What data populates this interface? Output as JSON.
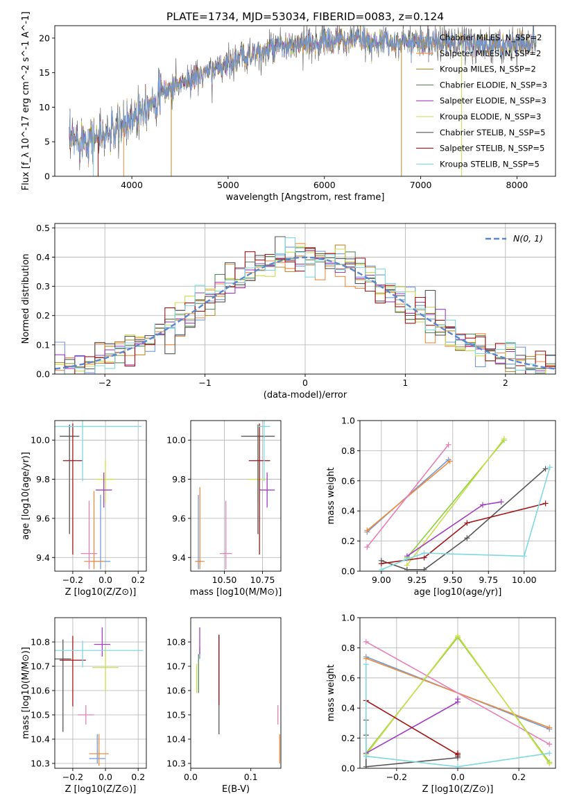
{
  "figure": {
    "title": "PLATE=1734, MJD=53034, FIBERID=0083, z=0.124"
  },
  "colors": [
    "#6f9bd9",
    "#ef8a3d",
    "#b88a2d",
    "#5a8a5a",
    "#a23cc2",
    "#ccdc4c",
    "#555555",
    "#a31313",
    "#7fd7e0",
    "#e77fb5",
    "#8ad23a",
    "#7b3fbf"
  ],
  "chart_data": [
    {
      "id": "spectrum",
      "type": "line",
      "xlabel": "wavelength [Angstrom, rest frame]",
      "ylabel": "Flux [f_λ 10^-17 erg cm^-2 s^-1 A^-1]",
      "xlim": [
        3200,
        8400
      ],
      "ylim": [
        0,
        21.8
      ],
      "xticks": [
        4000,
        5000,
        6000,
        7000,
        8000
      ],
      "yticks": [
        0,
        5,
        10,
        15,
        20
      ],
      "legend_position": "right",
      "continuum": {
        "x": [
          3350,
          3500,
          3700,
          3900,
          4100,
          4300,
          4500,
          4800,
          5000,
          5200,
          5500,
          5800,
          6000,
          6300,
          6600,
          7000,
          7400,
          7800,
          8200
        ],
        "y": [
          5.0,
          5.5,
          5.8,
          7.0,
          10.0,
          12.0,
          13.5,
          15.0,
          16.5,
          17.5,
          18.5,
          19.0,
          19.5,
          19.8,
          19.5,
          19.5,
          19.2,
          19.0,
          19.5
        ]
      },
      "series": [
        {
          "name": "Chabrier MILES, N_SSP=2"
        },
        {
          "name": "Salpeter MILES, N_SSP=2"
        },
        {
          "name": "Kroupa MILES, N_SSP=2"
        },
        {
          "name": "Chabrier ELODIE, N_SSP=3"
        },
        {
          "name": "Salpeter ELODIE, N_SSP=3"
        },
        {
          "name": "Kroupa ELODIE, N_SSP=3"
        },
        {
          "name": "Chabrier STELIB, N_SSP=5"
        },
        {
          "name": "Salpeter STELIB, N_SSP=5"
        },
        {
          "name": "Kroupa STELIB, N_SSP=5"
        }
      ]
    },
    {
      "id": "residuals",
      "type": "histogram",
      "xlabel": "(data-model)/error",
      "ylabel": "Normed distribution",
      "xlim": [
        -2.5,
        2.5
      ],
      "ylim": [
        0,
        0.515
      ],
      "xticks": [
        -2,
        -1,
        0,
        1,
        2
      ],
      "yticks": [
        0.0,
        0.1,
        0.2,
        0.3,
        0.4,
        0.5
      ],
      "grid": true,
      "legend_position": "upper right",
      "legend_label": "N(0, 1)",
      "bin_width": 0.1
    },
    {
      "id": "age_vs_Z",
      "type": "errorbar",
      "xlabel": "Z [log10(Z/Z⊙)]",
      "ylabel": "age [log10(age/yr)]",
      "xlim": [
        -0.31,
        0.25
      ],
      "ylim": [
        9.33,
        10.1
      ],
      "xticks": [
        -0.2,
        0.0,
        0.2
      ],
      "yticks": [
        9.4,
        9.6,
        9.8,
        10.0
      ],
      "grid": true,
      "points": [
        {
          "x": -0.03,
          "y": 9.38,
          "xerr": 0.06,
          "yerr": [
            0.04,
            0.34
          ],
          "c": 0
        },
        {
          "x": -0.07,
          "y": 9.38,
          "xerr": 0.06,
          "yerr": [
            0.04,
            0.36
          ],
          "c": 1
        },
        {
          "x": 0.0,
          "y": 9.8,
          "xerr": 0.06,
          "yerr": [
            0.12,
            0.1
          ],
          "c": 5
        },
        {
          "x": -0.01,
          "y": 9.745,
          "xerr": 0.05,
          "yerr": [
            0.09,
            0.09
          ],
          "c": 4
        },
        {
          "x": -0.22,
          "y": 10.02,
          "xerr": 0.06,
          "yerr": [
            0.5,
            0.06
          ],
          "c": 6
        },
        {
          "x": -0.2,
          "y": 9.895,
          "xerr": 0.06,
          "yerr": [
            0.48,
            0.19
          ],
          "c": 7
        },
        {
          "x": -0.14,
          "y": 10.07,
          "xerr": 0.36,
          "yerr": [
            0.28,
            0.04
          ],
          "c": 8
        },
        {
          "x": -0.1,
          "y": 9.42,
          "xerr": 0.05,
          "yerr": [
            0.08,
            0.27
          ],
          "c": 9
        }
      ]
    },
    {
      "id": "age_vs_mass",
      "type": "errorbar",
      "xlabel": "mass [log10(M/M⊙)]",
      "ylabel": "",
      "xlim": [
        10.28,
        10.87
      ],
      "ylim": [
        9.33,
        10.1
      ],
      "xticks": [
        10.5,
        10.75
      ],
      "yticks": [
        9.4,
        9.6,
        9.8,
        10.0
      ],
      "grid": true,
      "points": [
        {
          "x": 10.33,
          "y": 9.38,
          "xerr": 0.02,
          "yerr": [
            0.04,
            0.34
          ],
          "c": 0
        },
        {
          "x": 10.34,
          "y": 9.38,
          "xerr": 0.03,
          "yerr": [
            0.04,
            0.38
          ],
          "c": 1
        },
        {
          "x": 10.72,
          "y": 9.8,
          "xerr": 0.06,
          "yerr": [
            0.12,
            0.1
          ],
          "c": 5
        },
        {
          "x": 10.78,
          "y": 9.745,
          "xerr": 0.05,
          "yerr": [
            0.09,
            0.09
          ],
          "c": 4
        },
        {
          "x": 10.72,
          "y": 10.02,
          "xerr": 0.11,
          "yerr": [
            0.5,
            0.06
          ],
          "c": 6
        },
        {
          "x": 10.73,
          "y": 9.895,
          "xerr": 0.07,
          "yerr": [
            0.48,
            0.19
          ],
          "c": 7
        },
        {
          "x": 10.76,
          "y": 10.07,
          "xerr": 0.04,
          "yerr": [
            0.28,
            0.04
          ],
          "c": 8
        },
        {
          "x": 10.51,
          "y": 9.42,
          "xerr": 0.04,
          "yerr": [
            0.08,
            0.27
          ],
          "c": 9
        }
      ]
    },
    {
      "id": "mass_weight_vs_age",
      "type": "line",
      "xlabel": "age [log10(age/yr)]",
      "ylabel": "mass weight",
      "xlim": [
        8.85,
        10.22
      ],
      "ylim": [
        0,
        1.0
      ],
      "xticks": [
        9.0,
        9.25,
        9.5,
        9.75,
        10.0
      ],
      "yticks": [
        0.0,
        0.2,
        0.4,
        0.6,
        0.8,
        1.0
      ],
      "grid": true,
      "series": [
        {
          "x": [
            8.9,
            9.47
          ],
          "y": [
            0.26,
            0.74
          ],
          "c": 0
        },
        {
          "x": [
            8.9,
            9.48
          ],
          "y": [
            0.27,
            0.73
          ],
          "c": 1
        },
        {
          "x": [
            8.9,
            9.47
          ],
          "y": [
            0.16,
            0.84
          ],
          "c": 9
        },
        {
          "x": [
            9.18,
            9.86
          ],
          "y": [
            0.09,
            0.87
          ],
          "c": 10
        },
        {
          "x": [
            9.18,
            9.86
          ],
          "y": [
            0.04,
            0.88
          ],
          "c": 5
        },
        {
          "x": [
            9.18,
            9.71,
            9.84
          ],
          "y": [
            0.1,
            0.44,
            0.46
          ],
          "c": 4
        },
        {
          "x": [
            9.0,
            9.18,
            9.3,
            9.6,
            10.15
          ],
          "y": [
            0.07,
            0.01,
            0.01,
            0.22,
            0.68
          ],
          "c": 6
        },
        {
          "x": [
            9.0,
            9.3,
            9.6,
            10.15
          ],
          "y": [
            0.05,
            0.09,
            0.32,
            0.45
          ],
          "c": 7
        },
        {
          "x": [
            9.0,
            9.18,
            9.3,
            10.0,
            10.18
          ],
          "y": [
            0.01,
            0.08,
            0.12,
            0.1,
            0.69
          ],
          "c": 8
        }
      ]
    },
    {
      "id": "mass_vs_Z",
      "type": "errorbar",
      "xlabel": "Z [log10(Z/Z⊙)]",
      "ylabel": "mass [log10(M/M⊙)]",
      "xlim": [
        -0.31,
        0.25
      ],
      "ylim": [
        10.28,
        10.9
      ],
      "xticks": [
        -0.2,
        0.0,
        0.2
      ],
      "yticks": [
        10.3,
        10.4,
        10.5,
        10.6,
        10.7,
        10.8
      ],
      "grid": true,
      "points": [
        {
          "x": -0.05,
          "y": 10.32,
          "xerr": 0.05,
          "yerr": [
            0.02,
            0.1
          ],
          "c": 0
        },
        {
          "x": -0.04,
          "y": 10.34,
          "xerr": 0.06,
          "yerr": [
            0.05,
            0.08
          ],
          "c": 1
        },
        {
          "x": 0.0,
          "y": 10.695,
          "xerr": 0.08,
          "yerr": [
            0.1,
            0.08
          ],
          "c": 5
        },
        {
          "x": -0.02,
          "y": 10.79,
          "xerr": 0.05,
          "yerr": [
            0.05,
            0.07
          ],
          "c": 4
        },
        {
          "x": -0.26,
          "y": 10.73,
          "xerr": 0.05,
          "yerr": [
            0.3,
            0.08
          ],
          "c": 6
        },
        {
          "x": -0.2,
          "y": 10.725,
          "xerr": 0.08,
          "yerr": [
            0.19,
            0.1
          ],
          "c": 7
        },
        {
          "x": -0.14,
          "y": 10.765,
          "xerr": 0.37,
          "yerr": [
            0.07,
            0.04
          ],
          "c": 8
        },
        {
          "x": -0.12,
          "y": 10.5,
          "xerr": 0.05,
          "yerr": [
            0.04,
            0.04
          ],
          "c": 9
        }
      ]
    },
    {
      "id": "mass_vs_EBV",
      "type": "errorbar",
      "xlabel": "E(B-V)",
      "ylabel": "",
      "xlim": [
        0,
        0.15
      ],
      "ylim": [
        10.28,
        10.9
      ],
      "xticks": [
        0.0,
        0.1
      ],
      "yticks": [
        10.3,
        10.4,
        10.5,
        10.6,
        10.7,
        10.8
      ],
      "grid": false,
      "points": [
        {
          "x": 0.015,
          "y": 10.75,
          "xerr": 0,
          "yerr": [
            0.02,
            0.03
          ],
          "c": 0
        },
        {
          "x": 0.148,
          "y": 10.36,
          "xerr": 0,
          "yerr": [
            0.06,
            0.06
          ],
          "c": 1
        },
        {
          "x": 0.01,
          "y": 10.65,
          "xerr": 0,
          "yerr": [
            0.06,
            0.06
          ],
          "c": 5
        },
        {
          "x": 0.015,
          "y": 10.8,
          "xerr": 0,
          "yerr": [
            0.05,
            0.06
          ],
          "c": 4
        },
        {
          "x": 0.013,
          "y": 10.68,
          "xerr": 0,
          "yerr": [
            0.09,
            0.07
          ],
          "c": 3
        },
        {
          "x": 0.047,
          "y": 10.63,
          "xerr": 0,
          "yerr": [
            0.21,
            0.2
          ],
          "c": 6
        },
        {
          "x": 0.047,
          "y": 10.68,
          "xerr": 0,
          "yerr": [
            0.14,
            0.15
          ],
          "c": 7
        },
        {
          "x": 0.145,
          "y": 10.5,
          "xerr": 0,
          "yerr": [
            0.04,
            0.04
          ],
          "c": 9
        }
      ]
    },
    {
      "id": "mass_weight_vs_Z",
      "type": "line",
      "xlabel": "Z [log10(Z/Z⊙)]",
      "ylabel": "mass weight",
      "xlim": [
        -0.32,
        0.32
      ],
      "ylim": [
        0,
        1.0
      ],
      "xticks": [
        -0.2,
        0.0,
        0.2
      ],
      "yticks": [
        0.0,
        0.2,
        0.4,
        0.6,
        0.8,
        1.0
      ],
      "grid": true,
      "series": [
        {
          "x": [
            -0.3,
            0.3
          ],
          "y": [
            0.74,
            0.26
          ],
          "c": 0
        },
        {
          "x": [
            -0.3,
            0.3
          ],
          "y": [
            0.73,
            0.27
          ],
          "c": 1
        },
        {
          "x": [
            -0.3,
            0.3
          ],
          "y": [
            0.84,
            0.16
          ],
          "c": 9
        },
        {
          "x": [
            -0.3,
            0.0,
            0.3
          ],
          "y": [
            0.1,
            0.87,
            0.04
          ],
          "c": 10
        },
        {
          "x": [
            -0.3,
            0.0,
            0.3
          ],
          "y": [
            0.09,
            0.88,
            0.03
          ],
          "c": 5
        },
        {
          "x": [
            -0.3,
            0.0,
            0.0
          ],
          "y": [
            0.1,
            0.44,
            0.46
          ],
          "c": 4
        },
        {
          "x": [
            -0.3,
            -0.3,
            -0.3,
            0.0,
            0.0
          ],
          "y": [
            0.22,
            0.32,
            0.01,
            0.07,
            0.08
          ],
          "c": 6
        },
        {
          "x": [
            -0.3,
            0.0,
            0.0
          ],
          "y": [
            0.45,
            0.09,
            0.1
          ],
          "c": 7
        },
        {
          "x": [
            -0.3,
            -0.3,
            0.0,
            0.3
          ],
          "y": [
            0.69,
            0.08,
            0.01,
            0.1
          ],
          "c": 8
        }
      ]
    }
  ]
}
